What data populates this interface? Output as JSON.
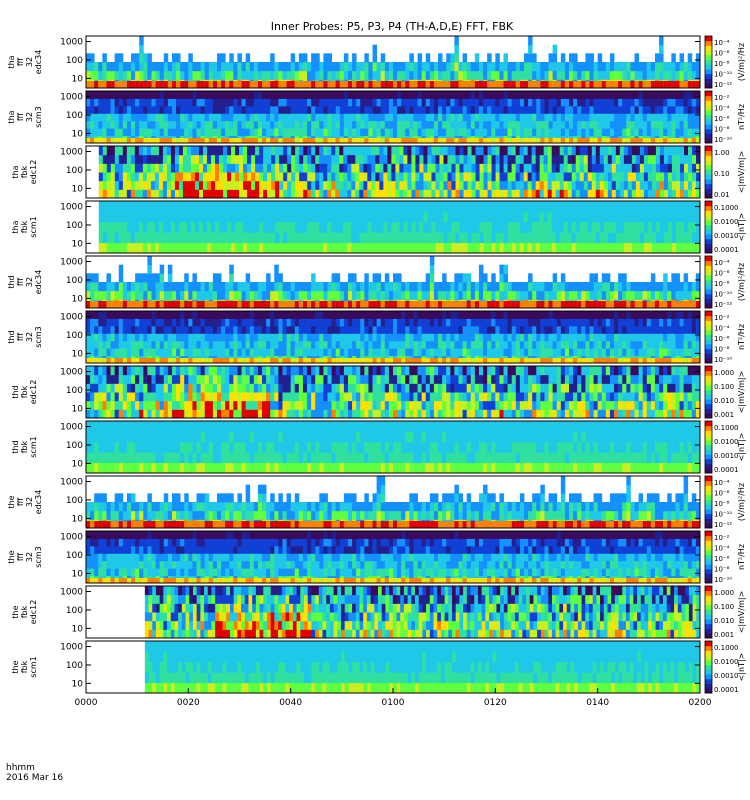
{
  "chart_data": {
    "type": "heatmap",
    "title": "Inner Probes: P5, P3, P4 (TH-A,D,E) FFT, FBK",
    "time_axis": {
      "label_line1": "hhmm",
      "label_line2": "2016 Mar 16",
      "ticks": [
        "0000",
        "0020",
        "0040",
        "0100",
        "0120",
        "0140",
        "0200"
      ],
      "range_minutes": [
        0,
        120
      ]
    },
    "y_ticks": [
      "1000",
      "100",
      "10"
    ],
    "y_scale": "log",
    "y_range_hz": [
      3,
      2000
    ],
    "panels": [
      {
        "label": [
          "tha",
          "fff",
          "32",
          "edc34"
        ],
        "kind": "fff_e",
        "data_start_min": 0,
        "colorbar_label": "(V/m)²/Hz",
        "colorbar_ticks": [
          "10⁻⁴",
          "10⁻⁶",
          "10⁻⁸",
          "10⁻¹⁰",
          "10⁻¹²"
        ]
      },
      {
        "label": [
          "tha",
          "fff",
          "32",
          "scm3"
        ],
        "kind": "fff_b",
        "data_start_min": 0,
        "colorbar_label": "nT²/Hz",
        "colorbar_ticks": [
          "10⁻²",
          "10⁻⁴",
          "10⁻⁶",
          "10⁻⁸",
          "10⁻¹⁰"
        ]
      },
      {
        "label": [
          "tha",
          "fbk",
          "edc12"
        ],
        "kind": "fbk_e",
        "data_start_min": 2.5,
        "colorbar_label": "<|mV/m|>",
        "colorbar_ticks": [
          "1.00",
          "0.10",
          "0.01"
        ]
      },
      {
        "label": [
          "tha",
          "fbk",
          "scm1"
        ],
        "kind": "fbk_b",
        "data_start_min": 2.5,
        "colorbar_label": "<|nT|>",
        "colorbar_ticks": [
          "0.1000",
          "0.0100",
          "0.0010",
          "0.0001"
        ]
      },
      {
        "label": [
          "thd",
          "fff",
          "32",
          "edc34"
        ],
        "kind": "fff_e",
        "data_start_min": 0,
        "colorbar_label": "(V/m)²/Hz",
        "colorbar_ticks": [
          "10⁻⁴",
          "10⁻⁶",
          "10⁻⁸",
          "10⁻¹⁰",
          "10⁻¹²"
        ]
      },
      {
        "label": [
          "thd",
          "fff",
          "32",
          "scm3"
        ],
        "kind": "fff_b",
        "data_start_min": 0,
        "colorbar_label": "nT²/Hz",
        "colorbar_ticks": [
          "10⁻²",
          "10⁻⁴",
          "10⁻⁶",
          "10⁻⁸",
          "10⁻¹⁰"
        ]
      },
      {
        "label": [
          "thd",
          "fbk",
          "edc12"
        ],
        "kind": "fbk_e",
        "data_start_min": 0,
        "colorbar_label": "<|mV/m|>",
        "colorbar_ticks": [
          "1.000",
          "0.100",
          "0.010",
          "0.001"
        ]
      },
      {
        "label": [
          "thd",
          "fbk",
          "scm1"
        ],
        "kind": "fbk_b",
        "data_start_min": 0,
        "colorbar_label": "<|nT|>",
        "colorbar_ticks": [
          "0.1000",
          "0.0100",
          "0.0010",
          "0.0001"
        ]
      },
      {
        "label": [
          "the",
          "fff",
          "32",
          "edc34"
        ],
        "kind": "fff_e",
        "data_start_min": 0,
        "colorbar_label": "(V/m)²/Hz",
        "colorbar_ticks": [
          "10⁻⁴",
          "10⁻⁶",
          "10⁻⁸",
          "10⁻¹⁰",
          "10⁻¹²"
        ]
      },
      {
        "label": [
          "the",
          "fff",
          "32",
          "scm3"
        ],
        "kind": "fff_b",
        "data_start_min": 0,
        "colorbar_label": "nT²/Hz",
        "colorbar_ticks": [
          "10⁻²",
          "10⁻⁴",
          "10⁻⁶",
          "10⁻⁸",
          "10⁻¹⁰"
        ]
      },
      {
        "label": [
          "the",
          "fbk",
          "edc12"
        ],
        "kind": "fbk_e",
        "data_start_min": 11.5,
        "colorbar_label": "<|mV/m|>",
        "colorbar_ticks": [
          "1.000",
          "0.100",
          "0.010",
          "0.001"
        ]
      },
      {
        "label": [
          "the",
          "fbk",
          "scm1"
        ],
        "kind": "fbk_b",
        "data_start_min": 11.5,
        "colorbar_label": "<|nT|>",
        "colorbar_ticks": [
          "0.1000",
          "0.0100",
          "0.0010",
          "0.0001"
        ]
      }
    ],
    "colormap": [
      "#3a0a5c",
      "#23208e",
      "#1040d6",
      "#1590ff",
      "#20c8e8",
      "#30e0a0",
      "#60ff40",
      "#c8f020",
      "#ffe000",
      "#ff8000",
      "#e00000"
    ],
    "grid": false,
    "legend": "colorbars-right"
  }
}
